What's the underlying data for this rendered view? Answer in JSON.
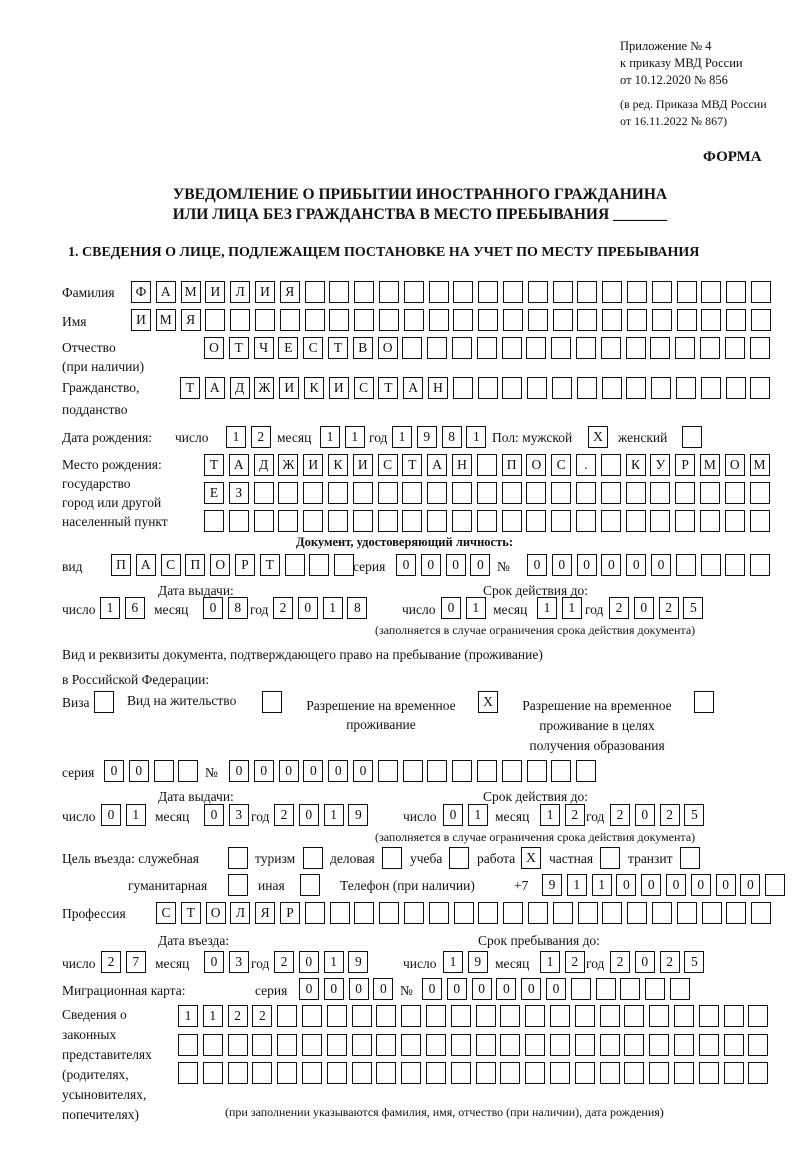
{
  "header": {
    "appendix_lines": [
      "Приложение № 4",
      "к приказу МВД России",
      "от 10.12.2020 № 856"
    ],
    "revision_lines": [
      "(в ред. Приказа МВД России",
      "от 16.11.2022 № 867)"
    ],
    "form_label": "ФОРМА",
    "title_line1": "УВЕДОМЛЕНИЕ О ПРИБЫТИИ ИНОСТРАННОГО ГРАЖДАНИНА",
    "title_line2": "ИЛИ ЛИЦА БЕЗ ГРАЖДАНСТВА В МЕСТО ПРЕБЫВАНИЯ _______"
  },
  "section1": {
    "heading": "1. СВЕДЕНИЯ О ЛИЦЕ, ПОДЛЕЖАЩЕМ ПОСТАНОВКЕ НА УЧЕТ ПО МЕСТУ ПРЕБЫВАНИЯ",
    "surname": {
      "label": "Фамилия",
      "value": "ФАМИЛИЯ"
    },
    "name": {
      "label": "Имя",
      "value": "ИМЯ"
    },
    "patronymic": {
      "label1": "Отчество",
      "label2": "(при наличии)",
      "value": "ОТЧЕСТВО"
    },
    "citizenship": {
      "label1": "Гражданство,",
      "label2": "подданство",
      "value": "ТАДЖИКИСТАН"
    },
    "birth": {
      "label": "Дата рождения:",
      "day_label": "число",
      "day": "12",
      "month_label": "месяц",
      "month": "11",
      "year_label": "год",
      "year": "1981",
      "sex_label": "Пол: мужской",
      "male": "X",
      "female_label": "женский",
      "female": ""
    },
    "birthplace": {
      "label1": "Место рождения:",
      "label2": "государство",
      "label3": "город или другой",
      "label4": "населенный пункт",
      "line1": "ТАДЖИКИСТАН ПОС. КУРМОМБ",
      "line2": "ЕЗ",
      "line3": ""
    },
    "id_doc": {
      "heading": "Документ, удостоверяющий личность:",
      "kind_label": "вид",
      "kind": "ПАСПОРТ",
      "series_label": "серия",
      "series": "0000",
      "number_label": "№",
      "number": "000000",
      "issue_label": "Дата выдачи:",
      "valid_label": "Срок действия до:",
      "day_label": "число",
      "month_label": "месяц",
      "year_label": "год",
      "issue_day": "16",
      "issue_month": "08",
      "issue_year": "2018",
      "valid_day": "01",
      "valid_month": "11",
      "valid_year": "2025",
      "note": "(заполняется в случае ограничения срока действия документа)"
    },
    "stay_doc": {
      "heading1": "Вид и реквизиты документа, подтверждающего право на пребывание (проживание)",
      "heading2": "в Российской Федерации:",
      "visa_label": "Виза",
      "visa": "",
      "residence_label": "Вид на жительство",
      "residence": "",
      "trp_label1": "Разрешение на временное",
      "trp_label2": "проживание",
      "trp": "X",
      "trp_edu_label1": "Разрешение на временное",
      "trp_edu_label2": "проживание в целях",
      "trp_edu_label3": "получения образования",
      "trp_edu": "",
      "series_label": "серия",
      "series": "00",
      "number_label": "№",
      "number": "000000",
      "issue_label": "Дата выдачи:",
      "valid_label": "Срок действия до:",
      "issue_day": "01",
      "issue_month": "03",
      "issue_year": "2019",
      "valid_day": "01",
      "valid_month": "12",
      "valid_year": "2025",
      "note": "(заполняется в случае ограничения срока действия документа)"
    },
    "purpose": {
      "label": "Цель въезда: служебная",
      "official": "",
      "tourism_label": "туризм",
      "tourism": "",
      "business_label": "деловая",
      "business": "",
      "study_label": "учеба",
      "study": "",
      "work_label": "работа",
      "work": "X",
      "private_label": "частная",
      "private": "",
      "transit_label": "транзит",
      "transit": "",
      "humanitarian_label": "гуманитарная",
      "humanitarian": "",
      "other_label": "иная",
      "other": ""
    },
    "phone": {
      "label": "Телефон (при наличии)",
      "prefix": "+7",
      "value": "911000000"
    },
    "profession": {
      "label": "Профессия",
      "value": "СТОЛЯР"
    },
    "entry": {
      "entry_label": "Дата въезда:",
      "stay_until_label": "Срок пребывания до:",
      "day_label": "число",
      "month_label": "месяц",
      "year_label": "год",
      "entry_day": "27",
      "entry_month": "03",
      "entry_year": "2019",
      "until_day": "19",
      "until_month": "12",
      "until_year": "2025"
    },
    "migration_card": {
      "label": "Миграционная карта:",
      "series_label": "серия",
      "series": "0000",
      "number_label": "№",
      "number": "000000"
    },
    "representatives": {
      "label_lines": [
        "Сведения о",
        "законных",
        "представителях",
        "(родителях,",
        "усыновителях,",
        "попечителях)"
      ],
      "line1": "1122",
      "line2": "",
      "line3": "",
      "note": "(при заполнении указываются фамилия, имя, отчество (при наличии), дата рождения)"
    }
  }
}
